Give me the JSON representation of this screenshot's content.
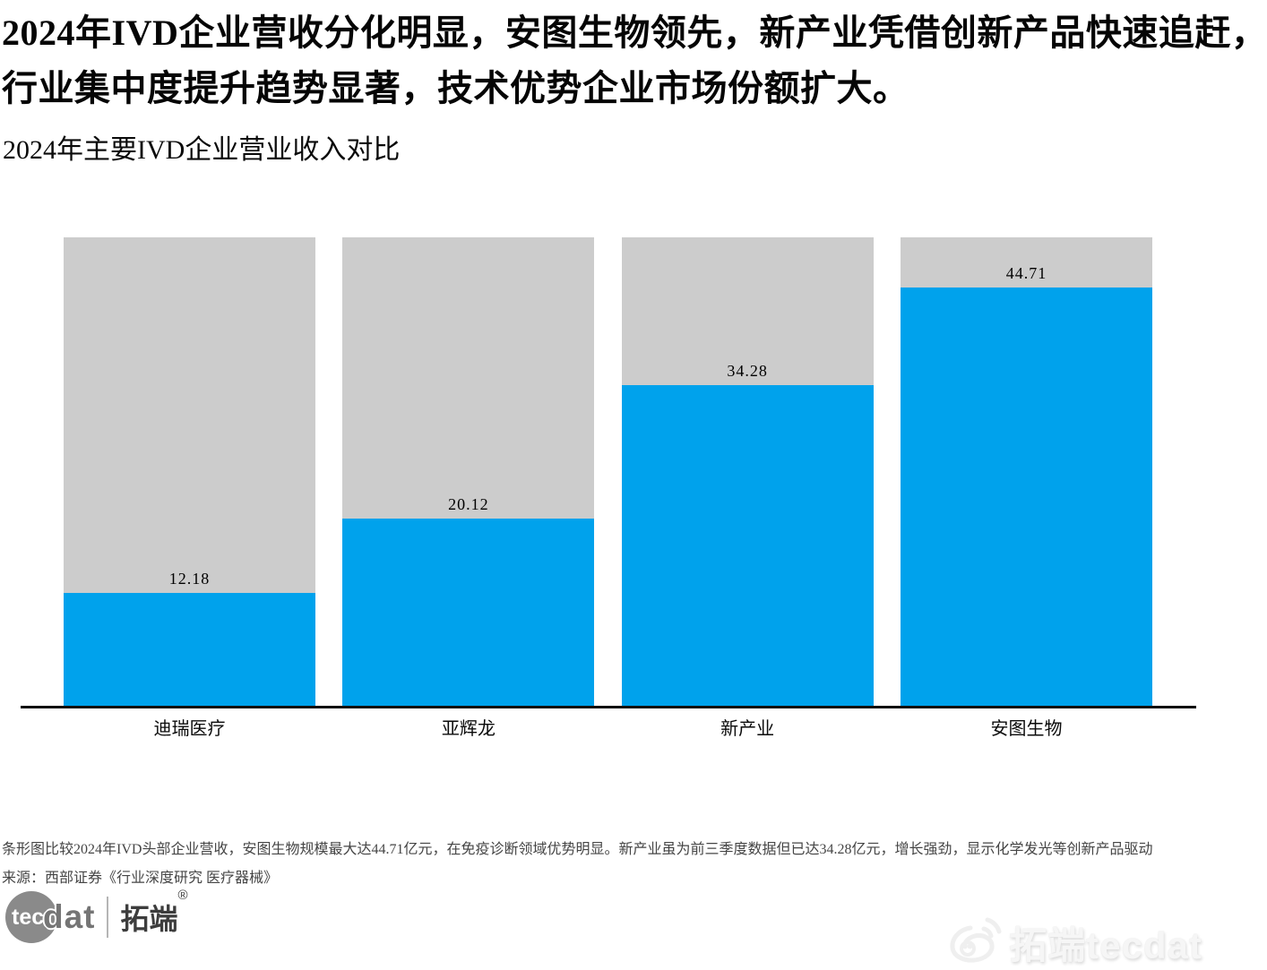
{
  "header": {
    "title_line1": "2024年IVD企业营收分化明显，安图生物领先，新产业凭借创新产品快速追赶，",
    "title_line2": "行业集中度提升趋势显著，技术优势企业市场份额扩大。",
    "chart_title": "2024年主要IVD企业营业收入对比"
  },
  "chart_data": {
    "type": "bar",
    "title": "2024年主要IVD企业营业收入对比",
    "categories": [
      "迪瑞医疗",
      "亚辉龙",
      "新产业",
      "安图生物"
    ],
    "values": [
      12.18,
      20.12,
      34.28,
      44.71
    ],
    "value_labels": [
      "12.18",
      "20.12",
      "34.28",
      "44.71"
    ],
    "unit": "亿元",
    "ylim": [
      0,
      50
    ],
    "grid": false,
    "legend": "none",
    "orientation": "vertical",
    "bar_color": "#00a2ec",
    "track_color": "#cccccc",
    "axis_color": "#0d0d0d"
  },
  "footer": {
    "description": "条形图比较2024年IVD头部企业营收，安图生物规模最大达44.71亿元，在免疫诊断领域优势明显。新产业虽为前三季度数据但已达34.28亿元，增长强劲，显示化学发光等创新产品驱动",
    "source": "来源：西部证券《行业深度研究 医疗器械》"
  },
  "branding": {
    "logo_circle_text": "tec",
    "logo_dat_text": "dat",
    "logo_cn_text": "拓端",
    "logo_reg_mark": "®",
    "watermark_text": "拓端tecdat",
    "watermark_icon": "weibo-icon"
  }
}
